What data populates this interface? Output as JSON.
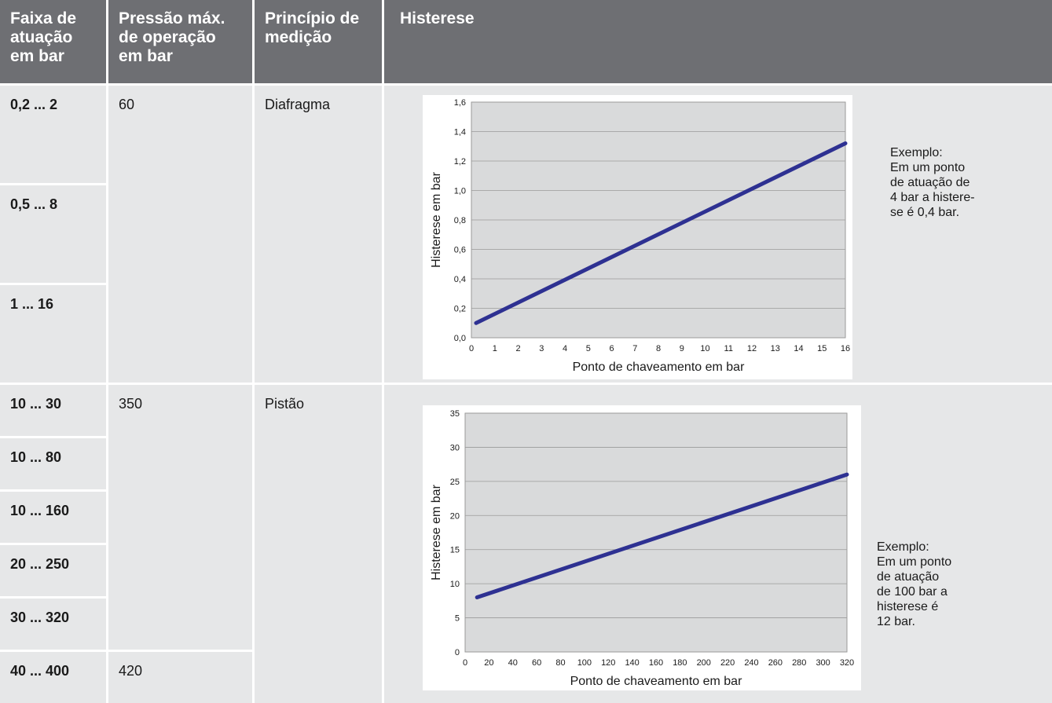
{
  "header": {
    "col1": [
      "Faixa de",
      "atuação",
      "em bar"
    ],
    "col2": [
      "Pressão máx.",
      "de operação",
      "em bar"
    ],
    "col3": [
      "Princípio de",
      "medição"
    ],
    "col4": [
      "Histerese"
    ]
  },
  "group1": {
    "ranges": [
      "0,2 ... 2",
      "0,5 ... 8",
      "1 ... 16"
    ],
    "pressure": "60",
    "principle": "Diafragma",
    "example": [
      "Exemplo:",
      "Em um ponto",
      "de atuação de",
      "4 bar a histere-",
      "se é 0,4 bar."
    ]
  },
  "group2": {
    "ranges": [
      "10 ... 30",
      "10 ... 80",
      "10 ... 160",
      "20 ... 250",
      "30 ... 320",
      "40 ... 400"
    ],
    "pressure": "350",
    "pressure_last": "420",
    "principle": "Pistão",
    "example": [
      "Exemplo:",
      "Em um ponto",
      "de atuação",
      "de 100 bar a",
      "histerese é",
      "12 bar."
    ]
  },
  "chart_data": [
    {
      "type": "line",
      "xlabel": "Ponto de chaveamento em bar",
      "ylabel": "Histerese em bar",
      "xticks": [
        "0",
        "1",
        "2",
        "3",
        "4",
        "5",
        "6",
        "7",
        "8",
        "9",
        "10",
        "11",
        "12",
        "13",
        "14",
        "15",
        "16"
      ],
      "yticks": [
        "0,0",
        "0,2",
        "0,4",
        "0,6",
        "0,8",
        "1,0",
        "1,2",
        "1,4",
        "1,6"
      ],
      "xlim": [
        0,
        16
      ],
      "ylim": [
        0,
        1.6
      ],
      "grid": true,
      "color": "#2e3192",
      "series": [
        {
          "x": [
            0.2,
            16
          ],
          "y": [
            0.1,
            1.32
          ]
        }
      ]
    },
    {
      "type": "line",
      "xlabel": "Ponto de chaveamento em bar",
      "ylabel": "Histerese em bar",
      "xticks": [
        "0",
        "20",
        "40",
        "60",
        "80",
        "100",
        "120",
        "140",
        "160",
        "180",
        "200",
        "220",
        "240",
        "260",
        "280",
        "300",
        "320"
      ],
      "yticks": [
        "0",
        "5",
        "10",
        "15",
        "20",
        "25",
        "30",
        "35"
      ],
      "xlim": [
        0,
        320
      ],
      "ylim": [
        0,
        35
      ],
      "grid": true,
      "color": "#2e3192",
      "series": [
        {
          "x": [
            10,
            320
          ],
          "y": [
            8,
            26
          ]
        }
      ]
    }
  ]
}
